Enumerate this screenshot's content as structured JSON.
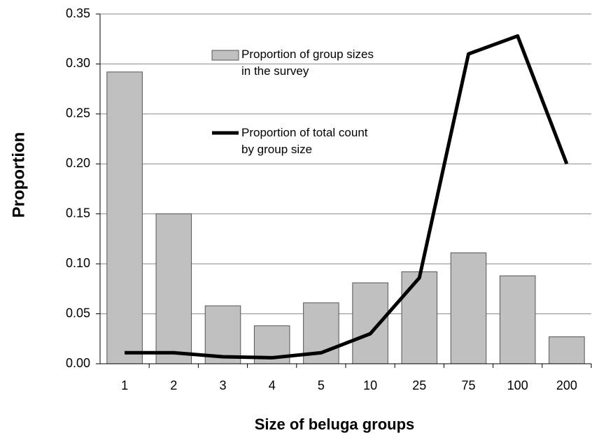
{
  "chart_data": {
    "type": "bar",
    "x_label": "Size of beluga groups",
    "y_label": "Proportion",
    "categories": [
      "1",
      "2",
      "3",
      "4",
      "5",
      "10",
      "25",
      "75",
      "100",
      "200"
    ],
    "series": [
      {
        "name": "Proportion of group sizes in the survey",
        "type": "bar",
        "color": "#c0c0c0",
        "values": [
          0.292,
          0.15,
          0.058,
          0.038,
          0.061,
          0.081,
          0.092,
          0.111,
          0.088,
          0.027
        ]
      },
      {
        "name": "Proportion of total count by group size",
        "type": "line",
        "color": "#000000",
        "values": [
          0.011,
          0.011,
          0.007,
          0.006,
          0.011,
          0.03,
          0.086,
          0.31,
          0.328,
          0.2
        ]
      }
    ],
    "ylim": [
      0,
      0.35
    ],
    "yticks": [
      {
        "value": 0,
        "label": "0.00"
      },
      {
        "value": 0.05,
        "label": "0.05"
      },
      {
        "value": 0.1,
        "label": "0.10"
      },
      {
        "value": 0.15,
        "label": "0.15"
      },
      {
        "value": 0.2,
        "label": "0.20"
      },
      {
        "value": 0.25,
        "label": "0.25"
      },
      {
        "value": 0.3,
        "label": "0.30"
      },
      {
        "value": 0.35,
        "label": "0.35"
      }
    ],
    "grid": true
  }
}
